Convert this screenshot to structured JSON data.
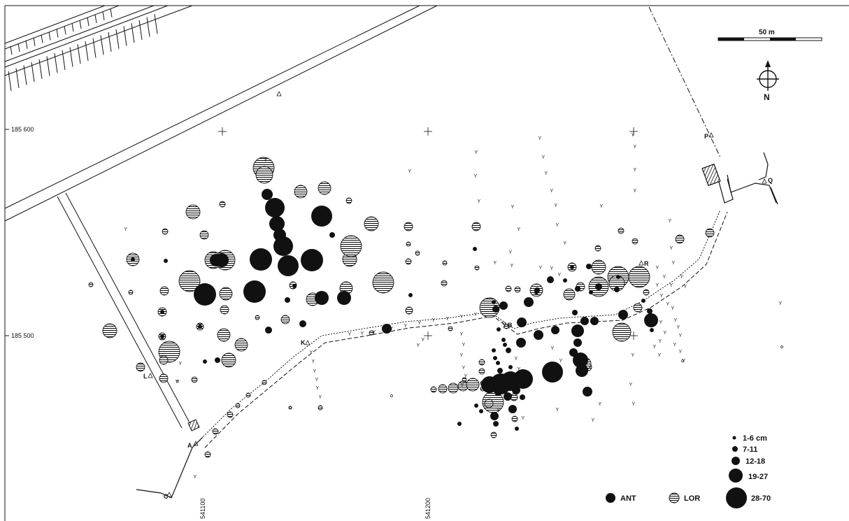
{
  "scale_bar": {
    "label": "50 m"
  },
  "north_arrow": {
    "label": "N"
  },
  "coordinates": {
    "y_top": "185 600",
    "y_bottom": "185 500",
    "x_left": "541100",
    "x_right": "541200"
  },
  "survey_points": [
    "A",
    "B",
    "C",
    "K",
    "L",
    "P",
    "Q",
    "R"
  ],
  "legend": {
    "size_classes": [
      "1-6 cm",
      "7-11",
      "12-18",
      "19-27",
      "28-70"
    ],
    "species": [
      {
        "label": "ANT",
        "style": "solid",
        "color": "#111111"
      },
      {
        "label": "LOR",
        "style": "hatched",
        "color": "#111111"
      }
    ]
  }
}
